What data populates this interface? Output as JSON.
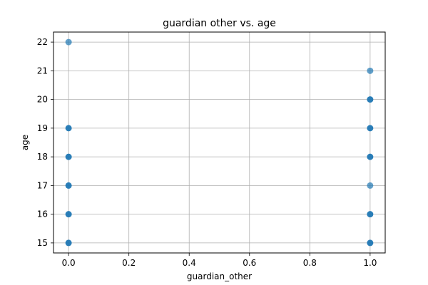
{
  "chart_data": {
    "type": "scatter",
    "title": "guardian other vs. age",
    "xlabel": "guardian_other",
    "ylabel": "age",
    "xlim": [
      -0.05,
      1.05
    ],
    "ylim": [
      14.65,
      22.35
    ],
    "xticks": [
      0.0,
      0.2,
      0.4,
      0.6,
      0.8,
      1.0
    ],
    "xtick_labels": [
      "0.0",
      "0.2",
      "0.4",
      "0.6",
      "0.8",
      "1.0"
    ],
    "yticks": [
      15,
      16,
      17,
      18,
      19,
      20,
      21,
      22
    ],
    "ytick_labels": [
      "15",
      "16",
      "17",
      "18",
      "19",
      "20",
      "21",
      "22"
    ],
    "grid": true,
    "legend": "none",
    "marker_color": "#1f77b4",
    "points": [
      {
        "x": 0,
        "y": 15,
        "weight": "heavy"
      },
      {
        "x": 0,
        "y": 16,
        "weight": "heavy"
      },
      {
        "x": 0,
        "y": 17,
        "weight": "heavy"
      },
      {
        "x": 0,
        "y": 18,
        "weight": "heavy"
      },
      {
        "x": 0,
        "y": 19,
        "weight": "heavy"
      },
      {
        "x": 0,
        "y": 22,
        "weight": "light"
      },
      {
        "x": 1,
        "y": 15,
        "weight": "heavy"
      },
      {
        "x": 1,
        "y": 16,
        "weight": "heavy"
      },
      {
        "x": 1,
        "y": 17,
        "weight": "light"
      },
      {
        "x": 1,
        "y": 18,
        "weight": "heavy"
      },
      {
        "x": 1,
        "y": 19,
        "weight": "heavy"
      },
      {
        "x": 1,
        "y": 20,
        "weight": "heavy"
      },
      {
        "x": 1,
        "y": 21,
        "weight": "light"
      }
    ]
  }
}
